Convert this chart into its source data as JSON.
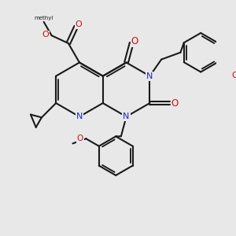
{
  "bg_color": "#e8e8e8",
  "bond_color": "#1a1a1a",
  "N_color": "#2222cc",
  "O_color": "#cc1111",
  "C_color": "#1a1a1a",
  "lw": 1.5,
  "figsize": [
    3.0,
    3.0
  ],
  "dpi": 100,
  "xlim": [
    -3.5,
    4.5
  ],
  "ylim": [
    -4.0,
    3.5
  ]
}
